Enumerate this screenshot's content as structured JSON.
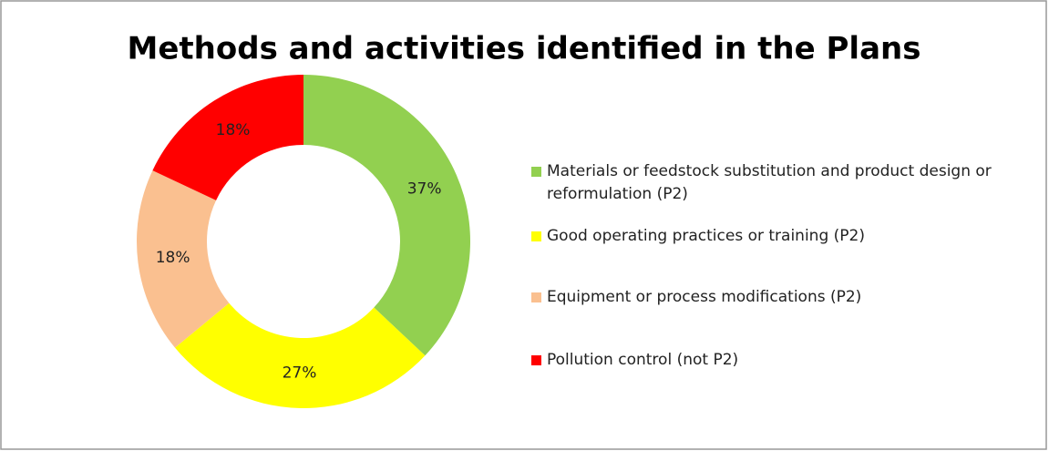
{
  "chart_data": {
    "type": "donut",
    "title": "Methods and activities identified in the Plans",
    "categories": [
      "Materials or feedstock substitution and product design or reformulation (P2)",
      "Good operating practices or training (P2)",
      "Equipment or process modifications (P2)",
      "Pollution control (not P2)"
    ],
    "values": [
      37,
      27,
      18,
      18
    ],
    "value_labels": [
      "37%",
      "27%",
      "18%",
      "18%"
    ],
    "colors": [
      "#92d050",
      "#ffff00",
      "#fac090",
      "#ff0000"
    ],
    "legend": "right"
  }
}
